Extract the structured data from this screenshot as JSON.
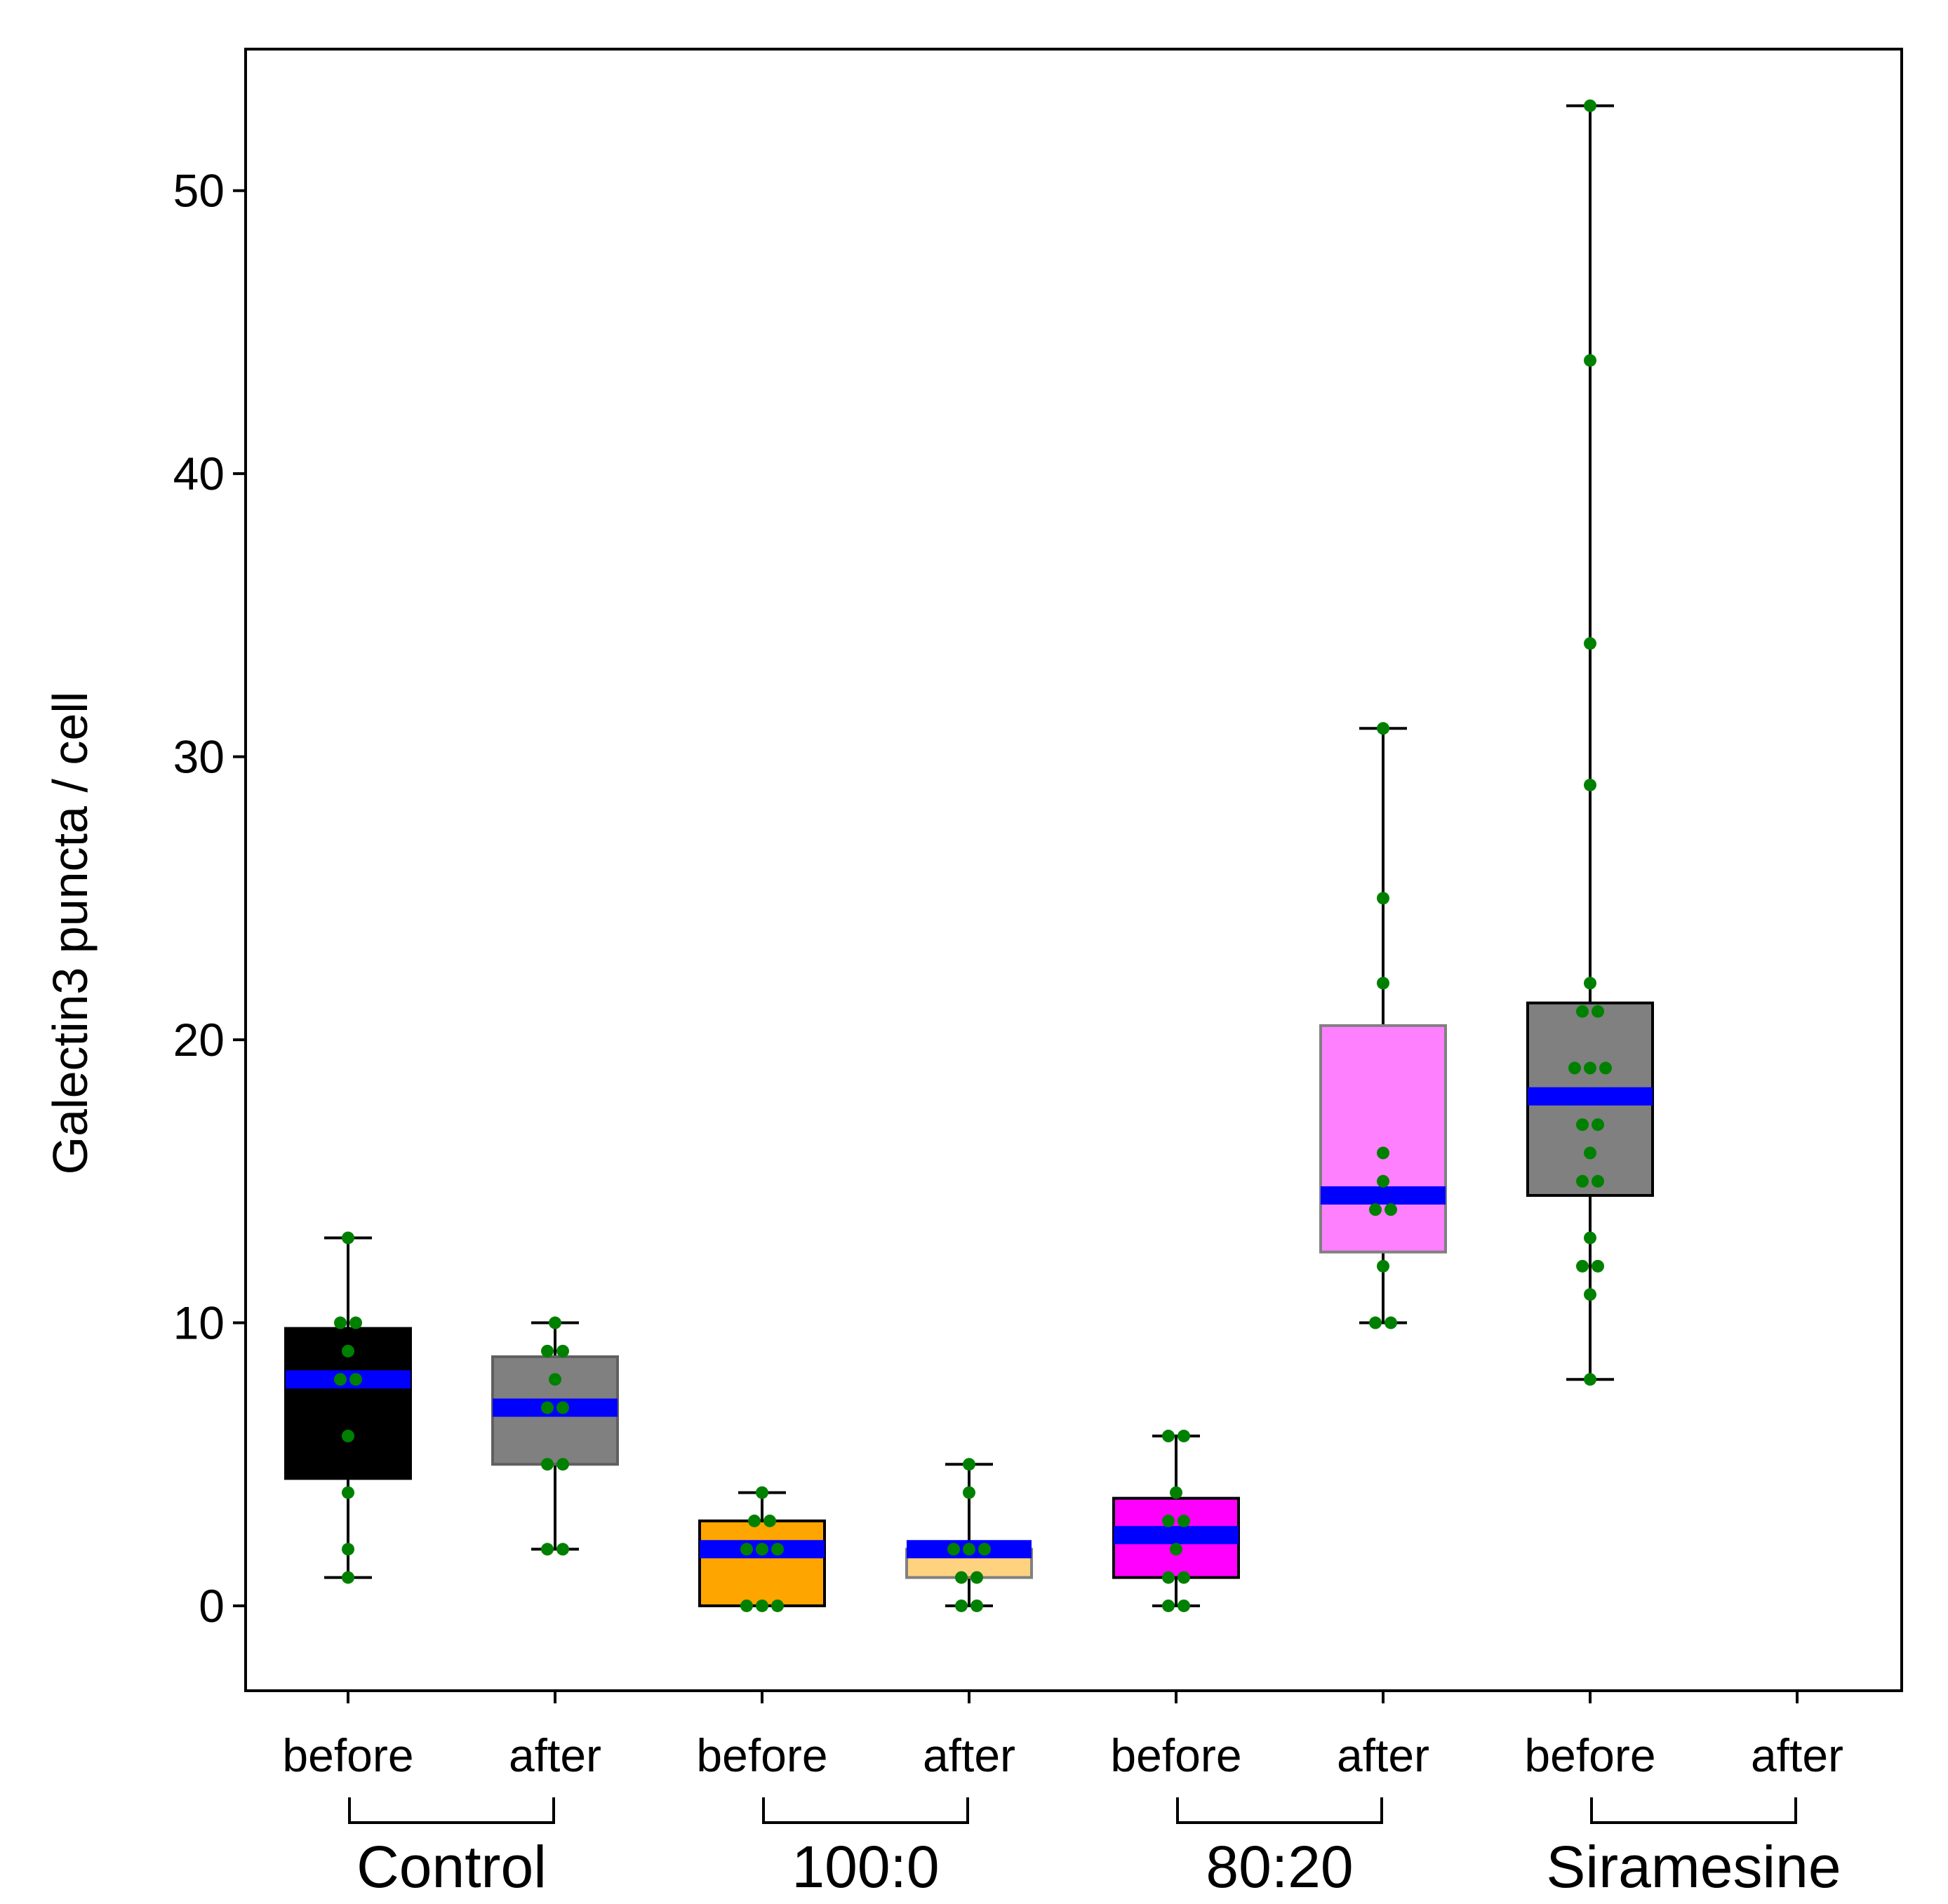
{
  "chart_data": {
    "type": "box",
    "title": "",
    "ylabel": "Galectin3 puncta / cell",
    "ylim": [
      -3,
      55
    ],
    "yticks": [
      0,
      10,
      20,
      30,
      40,
      50
    ],
    "grid": false,
    "legend": "none",
    "groups": [
      {
        "name": "Control",
        "first": 0,
        "last": 1
      },
      {
        "name": "100:0",
        "first": 2,
        "last": 3
      },
      {
        "name": "80:20",
        "first": 4,
        "last": 5
      },
      {
        "name": "Siramesine",
        "first": 6,
        "last": 7
      }
    ],
    "categories": [
      "before",
      "after",
      "before",
      "after",
      "before",
      "after",
      "before",
      "after"
    ],
    "median_color": "#0000ff",
    "point_color": "#008000",
    "boxes": [
      {
        "label": "before",
        "group": "Control",
        "fill": "#000000",
        "edge": "#000000",
        "whisker_low": 1,
        "q1": 4.5,
        "median": 8,
        "q3": 9.8,
        "whisker_high": 13,
        "points": [
          1,
          2,
          4,
          6,
          8,
          8,
          9,
          10,
          10,
          13
        ]
      },
      {
        "label": "after",
        "group": "Control",
        "fill": "#808080",
        "edge": "#606060",
        "whisker_low": 2,
        "q1": 5,
        "median": 7,
        "q3": 8.8,
        "whisker_high": 10,
        "points": [
          2,
          2,
          5,
          5,
          7,
          7,
          8,
          9,
          9,
          10
        ]
      },
      {
        "label": "before",
        "group": "100:0",
        "fill": "#ffa500",
        "edge": "#000000",
        "whisker_low": 0,
        "q1": 0,
        "median": 2,
        "q3": 3,
        "whisker_high": 4,
        "points": [
          0,
          0,
          0,
          2,
          2,
          2,
          3,
          3,
          4
        ]
      },
      {
        "label": "after",
        "group": "100:0",
        "fill": "#ffd280",
        "edge": "#808080",
        "whisker_low": 0,
        "q1": 1,
        "median": 2,
        "q3": 2,
        "whisker_high": 5,
        "points": [
          0,
          0,
          1,
          1,
          2,
          2,
          2,
          4,
          5
        ]
      },
      {
        "label": "before",
        "group": "80:20",
        "fill": "#ff00ff",
        "edge": "#000000",
        "whisker_low": 0,
        "q1": 1,
        "median": 2.5,
        "q3": 3.8,
        "whisker_high": 6,
        "points": [
          0,
          0,
          1,
          1,
          2,
          3,
          3,
          4,
          6,
          6
        ]
      },
      {
        "label": "after",
        "group": "80:20",
        "fill": "#ff80ff",
        "edge": "#808080",
        "whisker_low": 10,
        "q1": 12.5,
        "median": 14.5,
        "q3": 20.5,
        "whisker_high": 31,
        "points": [
          10,
          10,
          12,
          14,
          14,
          15,
          16,
          22,
          25,
          31
        ]
      },
      {
        "label": "before",
        "group": "Siramesine",
        "fill": "#808080",
        "edge": "#000000",
        "whisker_low": 8,
        "q1": 14.5,
        "median": 18,
        "q3": 21.3,
        "whisker_high": 53,
        "points": [
          8,
          11,
          12,
          12,
          13,
          15,
          15,
          16,
          17,
          17,
          19,
          19,
          19,
          21,
          21,
          22,
          29,
          34,
          44,
          53
        ]
      },
      {
        "label": "after",
        "group": "Siramesine",
        "fill": "none",
        "edge": "none",
        "whisker_low": null,
        "q1": null,
        "median": null,
        "q3": null,
        "whisker_high": null,
        "points": []
      }
    ]
  }
}
